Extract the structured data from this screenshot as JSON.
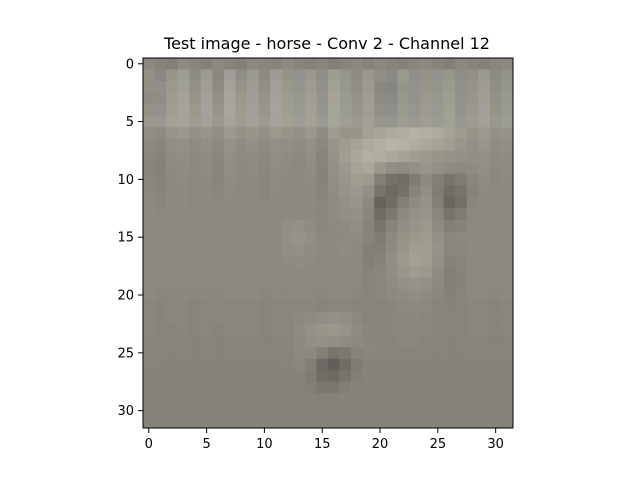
{
  "chart_data": {
    "type": "heatmap",
    "title": "Test image - horse - Conv 2 - Channel 12",
    "xlabel": "",
    "ylabel": "",
    "grid": false,
    "xlim": [
      -0.5,
      31.5
    ],
    "ylim": [
      31.5,
      -0.5
    ],
    "x_ticks": [
      0,
      5,
      10,
      15,
      20,
      25,
      30
    ],
    "y_ticks": [
      0,
      5,
      10,
      15,
      20,
      25,
      30
    ],
    "x_tick_labels": [
      "0",
      "5",
      "10",
      "15",
      "20",
      "25",
      "30"
    ],
    "y_tick_labels": [
      "0",
      "5",
      "10",
      "15",
      "20",
      "25",
      "30"
    ],
    "rows": 32,
    "cols": 32,
    "colors": {
      "base": "#8a887f",
      "light": "#b8b5a6",
      "dark": "#3a3834",
      "blue_tint": "#9aa0ac"
    },
    "values": [
      [
        0.45,
        0.42,
        0.4,
        0.48,
        0.44,
        0.41,
        0.46,
        0.43,
        0.4,
        0.45,
        0.44,
        0.42,
        0.47,
        0.43,
        0.41,
        0.44,
        0.4,
        0.43,
        0.46,
        0.42,
        0.45,
        0.43,
        0.41,
        0.44,
        0.46,
        0.42,
        0.4,
        0.45,
        0.43,
        0.41,
        0.44,
        0.46
      ],
      [
        0.52,
        0.4,
        0.55,
        0.6,
        0.48,
        0.58,
        0.44,
        0.62,
        0.5,
        0.56,
        0.47,
        0.6,
        0.54,
        0.49,
        0.57,
        0.45,
        0.61,
        0.52,
        0.48,
        0.55,
        0.5,
        0.42,
        0.58,
        0.46,
        0.53,
        0.49,
        0.56,
        0.44,
        0.51,
        0.57,
        0.47,
        0.5
      ],
      [
        0.5,
        0.46,
        0.58,
        0.64,
        0.52,
        0.62,
        0.48,
        0.66,
        0.54,
        0.6,
        0.5,
        0.63,
        0.57,
        0.52,
        0.6,
        0.48,
        0.64,
        0.55,
        0.5,
        0.58,
        0.45,
        0.38,
        0.55,
        0.48,
        0.56,
        0.52,
        0.59,
        0.47,
        0.54,
        0.6,
        0.5,
        0.53
      ],
      [
        0.48,
        0.44,
        0.6,
        0.66,
        0.55,
        0.64,
        0.52,
        0.68,
        0.58,
        0.62,
        0.53,
        0.65,
        0.6,
        0.55,
        0.62,
        0.51,
        0.66,
        0.57,
        0.53,
        0.6,
        0.48,
        0.42,
        0.57,
        0.5,
        0.58,
        0.54,
        0.61,
        0.49,
        0.56,
        0.62,
        0.52,
        0.55
      ],
      [
        0.53,
        0.49,
        0.62,
        0.68,
        0.58,
        0.66,
        0.55,
        0.7,
        0.6,
        0.64,
        0.56,
        0.67,
        0.62,
        0.57,
        0.64,
        0.53,
        0.68,
        0.59,
        0.55,
        0.62,
        0.51,
        0.45,
        0.59,
        0.53,
        0.6,
        0.56,
        0.63,
        0.51,
        0.58,
        0.64,
        0.54,
        0.57
      ],
      [
        0.58,
        0.56,
        0.64,
        0.66,
        0.6,
        0.65,
        0.58,
        0.67,
        0.61,
        0.64,
        0.59,
        0.66,
        0.63,
        0.6,
        0.65,
        0.57,
        0.67,
        0.62,
        0.58,
        0.63,
        0.56,
        0.52,
        0.6,
        0.56,
        0.62,
        0.58,
        0.64,
        0.55,
        0.6,
        0.65,
        0.57,
        0.59
      ],
      [
        0.5,
        0.48,
        0.55,
        0.58,
        0.52,
        0.56,
        0.5,
        0.59,
        0.53,
        0.56,
        0.51,
        0.58,
        0.55,
        0.52,
        0.57,
        0.49,
        0.6,
        0.55,
        0.56,
        0.64,
        0.68,
        0.72,
        0.74,
        0.78,
        0.76,
        0.72,
        0.66,
        0.6,
        0.55,
        0.58,
        0.52,
        0.54
      ],
      [
        0.46,
        0.44,
        0.5,
        0.52,
        0.48,
        0.51,
        0.46,
        0.53,
        0.49,
        0.51,
        0.47,
        0.52,
        0.5,
        0.48,
        0.52,
        0.45,
        0.55,
        0.6,
        0.66,
        0.72,
        0.76,
        0.8,
        0.78,
        0.74,
        0.7,
        0.66,
        0.62,
        0.56,
        0.52,
        0.55,
        0.49,
        0.51
      ],
      [
        0.44,
        0.42,
        0.48,
        0.5,
        0.46,
        0.49,
        0.44,
        0.51,
        0.47,
        0.49,
        0.45,
        0.5,
        0.48,
        0.46,
        0.5,
        0.43,
        0.53,
        0.62,
        0.7,
        0.76,
        0.74,
        0.7,
        0.66,
        0.62,
        0.58,
        0.56,
        0.54,
        0.52,
        0.5,
        0.52,
        0.47,
        0.49
      ],
      [
        0.43,
        0.41,
        0.47,
        0.49,
        0.45,
        0.48,
        0.43,
        0.5,
        0.46,
        0.48,
        0.44,
        0.49,
        0.47,
        0.45,
        0.49,
        0.42,
        0.52,
        0.58,
        0.66,
        0.7,
        0.58,
        0.5,
        0.48,
        0.52,
        0.56,
        0.52,
        0.48,
        0.46,
        0.48,
        0.5,
        0.46,
        0.48
      ],
      [
        0.44,
        0.42,
        0.46,
        0.48,
        0.45,
        0.47,
        0.43,
        0.49,
        0.46,
        0.47,
        0.44,
        0.48,
        0.46,
        0.45,
        0.48,
        0.42,
        0.5,
        0.56,
        0.62,
        0.6,
        0.4,
        0.32,
        0.3,
        0.38,
        0.46,
        0.4,
        0.34,
        0.38,
        0.44,
        0.48,
        0.45,
        0.47
      ],
      [
        0.45,
        0.43,
        0.46,
        0.47,
        0.45,
        0.46,
        0.44,
        0.48,
        0.46,
        0.46,
        0.44,
        0.47,
        0.46,
        0.45,
        0.47,
        0.43,
        0.49,
        0.54,
        0.58,
        0.52,
        0.34,
        0.28,
        0.32,
        0.42,
        0.5,
        0.38,
        0.3,
        0.34,
        0.42,
        0.47,
        0.45,
        0.46
      ],
      [
        0.46,
        0.44,
        0.46,
        0.47,
        0.45,
        0.46,
        0.45,
        0.47,
        0.46,
        0.46,
        0.45,
        0.47,
        0.46,
        0.45,
        0.47,
        0.44,
        0.48,
        0.52,
        0.56,
        0.46,
        0.24,
        0.3,
        0.4,
        0.48,
        0.54,
        0.4,
        0.26,
        0.32,
        0.44,
        0.46,
        0.45,
        0.46
      ],
      [
        0.47,
        0.45,
        0.46,
        0.46,
        0.46,
        0.46,
        0.45,
        0.47,
        0.46,
        0.46,
        0.45,
        0.46,
        0.46,
        0.46,
        0.46,
        0.44,
        0.48,
        0.5,
        0.52,
        0.44,
        0.3,
        0.36,
        0.46,
        0.52,
        0.56,
        0.44,
        0.34,
        0.38,
        0.45,
        0.46,
        0.45,
        0.46
      ],
      [
        0.46,
        0.45,
        0.46,
        0.46,
        0.45,
        0.46,
        0.45,
        0.46,
        0.46,
        0.46,
        0.45,
        0.46,
        0.5,
        0.52,
        0.48,
        0.44,
        0.47,
        0.48,
        0.5,
        0.42,
        0.34,
        0.42,
        0.5,
        0.54,
        0.58,
        0.48,
        0.4,
        0.42,
        0.46,
        0.46,
        0.45,
        0.46
      ],
      [
        0.46,
        0.45,
        0.45,
        0.46,
        0.45,
        0.45,
        0.45,
        0.46,
        0.45,
        0.46,
        0.45,
        0.46,
        0.52,
        0.54,
        0.5,
        0.45,
        0.46,
        0.47,
        0.48,
        0.42,
        0.38,
        0.46,
        0.54,
        0.58,
        0.6,
        0.52,
        0.44,
        0.45,
        0.46,
        0.46,
        0.45,
        0.46
      ],
      [
        0.46,
        0.45,
        0.45,
        0.46,
        0.45,
        0.45,
        0.45,
        0.46,
        0.45,
        0.46,
        0.45,
        0.46,
        0.5,
        0.52,
        0.49,
        0.45,
        0.46,
        0.48,
        0.46,
        0.4,
        0.4,
        0.48,
        0.56,
        0.62,
        0.62,
        0.54,
        0.44,
        0.44,
        0.46,
        0.46,
        0.45,
        0.46
      ],
      [
        0.46,
        0.45,
        0.45,
        0.45,
        0.45,
        0.45,
        0.45,
        0.45,
        0.45,
        0.45,
        0.45,
        0.45,
        0.48,
        0.49,
        0.47,
        0.45,
        0.46,
        0.47,
        0.45,
        0.4,
        0.42,
        0.5,
        0.58,
        0.64,
        0.62,
        0.52,
        0.42,
        0.43,
        0.46,
        0.46,
        0.45,
        0.46
      ],
      [
        0.45,
        0.45,
        0.45,
        0.45,
        0.45,
        0.45,
        0.45,
        0.45,
        0.45,
        0.45,
        0.45,
        0.45,
        0.46,
        0.47,
        0.46,
        0.45,
        0.45,
        0.46,
        0.45,
        0.42,
        0.44,
        0.5,
        0.56,
        0.6,
        0.58,
        0.48,
        0.4,
        0.42,
        0.45,
        0.45,
        0.45,
        0.45
      ],
      [
        0.45,
        0.45,
        0.45,
        0.45,
        0.45,
        0.45,
        0.45,
        0.45,
        0.45,
        0.45,
        0.45,
        0.45,
        0.45,
        0.46,
        0.45,
        0.45,
        0.45,
        0.45,
        0.45,
        0.43,
        0.44,
        0.48,
        0.52,
        0.54,
        0.52,
        0.46,
        0.4,
        0.42,
        0.45,
        0.45,
        0.45,
        0.45
      ],
      [
        0.45,
        0.44,
        0.44,
        0.45,
        0.44,
        0.45,
        0.44,
        0.45,
        0.45,
        0.45,
        0.44,
        0.45,
        0.45,
        0.45,
        0.45,
        0.44,
        0.45,
        0.45,
        0.44,
        0.43,
        0.44,
        0.46,
        0.48,
        0.5,
        0.48,
        0.44,
        0.41,
        0.43,
        0.45,
        0.45,
        0.44,
        0.45
      ],
      [
        0.44,
        0.43,
        0.44,
        0.44,
        0.43,
        0.44,
        0.44,
        0.44,
        0.44,
        0.44,
        0.43,
        0.44,
        0.44,
        0.44,
        0.44,
        0.43,
        0.44,
        0.44,
        0.43,
        0.43,
        0.43,
        0.44,
        0.45,
        0.46,
        0.45,
        0.43,
        0.42,
        0.43,
        0.44,
        0.44,
        0.43,
        0.44
      ],
      [
        0.44,
        0.43,
        0.44,
        0.44,
        0.43,
        0.44,
        0.44,
        0.44,
        0.44,
        0.44,
        0.43,
        0.44,
        0.44,
        0.46,
        0.48,
        0.5,
        0.52,
        0.5,
        0.46,
        0.43,
        0.43,
        0.44,
        0.44,
        0.45,
        0.44,
        0.43,
        0.43,
        0.43,
        0.44,
        0.44,
        0.43,
        0.44
      ],
      [
        0.44,
        0.43,
        0.43,
        0.44,
        0.43,
        0.44,
        0.43,
        0.44,
        0.44,
        0.44,
        0.43,
        0.44,
        0.44,
        0.48,
        0.52,
        0.56,
        0.58,
        0.54,
        0.48,
        0.44,
        0.43,
        0.44,
        0.44,
        0.44,
        0.44,
        0.43,
        0.43,
        0.43,
        0.44,
        0.44,
        0.43,
        0.44
      ],
      [
        0.43,
        0.42,
        0.43,
        0.43,
        0.42,
        0.43,
        0.42,
        0.43,
        0.43,
        0.43,
        0.42,
        0.43,
        0.43,
        0.46,
        0.5,
        0.52,
        0.5,
        0.48,
        0.46,
        0.44,
        0.43,
        0.43,
        0.44,
        0.44,
        0.43,
        0.43,
        0.42,
        0.43,
        0.43,
        0.43,
        0.42,
        0.43
      ],
      [
        0.43,
        0.42,
        0.42,
        0.43,
        0.42,
        0.43,
        0.42,
        0.43,
        0.43,
        0.43,
        0.42,
        0.43,
        0.43,
        0.45,
        0.46,
        0.4,
        0.34,
        0.36,
        0.42,
        0.44,
        0.43,
        0.43,
        0.43,
        0.43,
        0.43,
        0.42,
        0.42,
        0.42,
        0.43,
        0.43,
        0.42,
        0.43
      ],
      [
        0.43,
        0.42,
        0.42,
        0.42,
        0.42,
        0.42,
        0.42,
        0.42,
        0.42,
        0.42,
        0.42,
        0.42,
        0.43,
        0.44,
        0.4,
        0.28,
        0.22,
        0.3,
        0.38,
        0.42,
        0.42,
        0.42,
        0.42,
        0.42,
        0.42,
        0.42,
        0.42,
        0.42,
        0.42,
        0.42,
        0.42,
        0.42
      ],
      [
        0.42,
        0.42,
        0.42,
        0.42,
        0.42,
        0.42,
        0.42,
        0.42,
        0.42,
        0.42,
        0.42,
        0.42,
        0.42,
        0.42,
        0.38,
        0.3,
        0.28,
        0.34,
        0.4,
        0.42,
        0.42,
        0.42,
        0.42,
        0.42,
        0.42,
        0.42,
        0.42,
        0.42,
        0.42,
        0.42,
        0.42,
        0.42
      ],
      [
        0.42,
        0.42,
        0.42,
        0.42,
        0.42,
        0.42,
        0.42,
        0.42,
        0.42,
        0.42,
        0.42,
        0.42,
        0.42,
        0.42,
        0.4,
        0.36,
        0.36,
        0.4,
        0.42,
        0.42,
        0.42,
        0.42,
        0.42,
        0.42,
        0.42,
        0.42,
        0.42,
        0.42,
        0.42,
        0.42,
        0.42,
        0.42
      ],
      [
        0.42,
        0.42,
        0.42,
        0.42,
        0.42,
        0.42,
        0.42,
        0.42,
        0.42,
        0.42,
        0.42,
        0.42,
        0.42,
        0.42,
        0.42,
        0.41,
        0.41,
        0.42,
        0.42,
        0.42,
        0.42,
        0.42,
        0.42,
        0.42,
        0.42,
        0.42,
        0.42,
        0.42,
        0.42,
        0.42,
        0.42,
        0.42
      ],
      [
        0.42,
        0.42,
        0.42,
        0.42,
        0.42,
        0.42,
        0.42,
        0.42,
        0.42,
        0.42,
        0.42,
        0.42,
        0.42,
        0.42,
        0.42,
        0.42,
        0.42,
        0.42,
        0.42,
        0.42,
        0.42,
        0.42,
        0.42,
        0.42,
        0.42,
        0.42,
        0.42,
        0.42,
        0.42,
        0.42,
        0.42,
        0.42
      ],
      [
        0.42,
        0.42,
        0.42,
        0.42,
        0.42,
        0.42,
        0.42,
        0.42,
        0.42,
        0.42,
        0.42,
        0.42,
        0.42,
        0.42,
        0.42,
        0.42,
        0.42,
        0.42,
        0.42,
        0.42,
        0.42,
        0.42,
        0.42,
        0.42,
        0.42,
        0.42,
        0.42,
        0.42,
        0.42,
        0.42,
        0.42,
        0.42
      ]
    ]
  }
}
